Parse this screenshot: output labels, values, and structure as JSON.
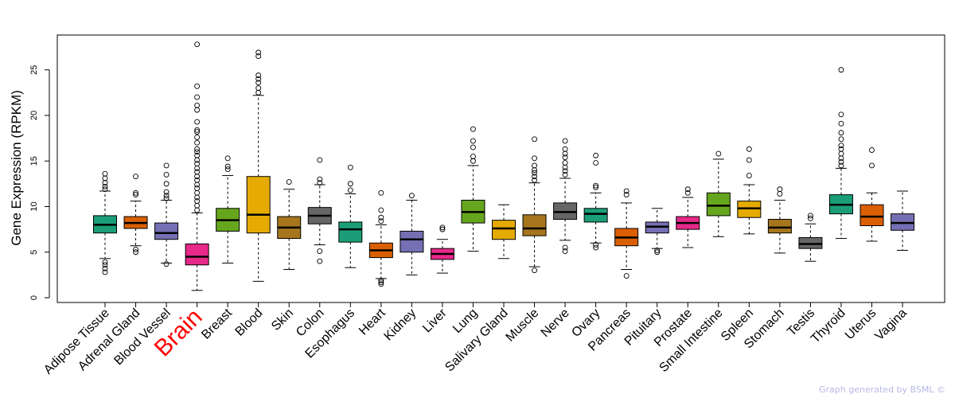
{
  "chart_data": {
    "type": "boxplot",
    "ylabel": "Gene Expression (RPKM)",
    "xlabel": "",
    "ylim": [
      0,
      28.5
    ],
    "yticks": [
      0,
      5,
      10,
      15,
      20,
      25
    ],
    "highlight": "Brain",
    "highlight_color": "#ff0000",
    "categories": [
      {
        "name": "Adipose Tissue",
        "color": "#1b9e77",
        "q1": 7.1,
        "median": 8.0,
        "q3": 9.0,
        "low": 4.3,
        "high": 11.7,
        "outliers": [
          2.8,
          3.2,
          3.6,
          3.9,
          11.9,
          12.2,
          12.6,
          13.1,
          13.6
        ]
      },
      {
        "name": "Adrenal Gland",
        "color": "#d95f02",
        "q1": 7.6,
        "median": 8.2,
        "q3": 8.9,
        "low": 5.7,
        "high": 10.6,
        "outliers": [
          5.0,
          5.3,
          11.3,
          11.5,
          13.3
        ]
      },
      {
        "name": "Blood Vessel",
        "color": "#7570b3",
        "q1": 6.4,
        "median": 7.1,
        "q3": 8.2,
        "low": 3.8,
        "high": 10.7,
        "outliers": [
          3.7,
          10.9,
          11.2,
          11.6,
          12.5,
          13.5,
          14.5
        ]
      },
      {
        "name": "Brain",
        "color": "#e7298a",
        "q1": 3.6,
        "median": 4.5,
        "q3": 5.9,
        "low": 0.8,
        "high": 9.3,
        "outliers": [
          9.6,
          10.1,
          10.6,
          11.0,
          11.5,
          12.0,
          12.4,
          12.9,
          13.3,
          13.8,
          14.2,
          14.7,
          15.1,
          15.6,
          16.0,
          16.3,
          17.0,
          17.6,
          18.2,
          18.4,
          19.3,
          20.6,
          21.1,
          22.0,
          23.2,
          27.8
        ]
      },
      {
        "name": "Breast",
        "color": "#66a61e",
        "q1": 7.3,
        "median": 8.5,
        "q3": 9.8,
        "low": 3.8,
        "high": 13.4,
        "outliers": [
          14.1,
          14.4,
          15.3
        ]
      },
      {
        "name": "Blood",
        "color": "#e6ab02",
        "q1": 7.1,
        "median": 9.1,
        "q3": 13.3,
        "low": 1.8,
        "high": 22.2,
        "outliers": [
          22.5,
          23.0,
          23.6,
          24.0,
          24.4,
          26.5,
          26.9
        ]
      },
      {
        "name": "Skin",
        "color": "#a6761d",
        "q1": 6.5,
        "median": 7.7,
        "q3": 8.9,
        "low": 3.1,
        "high": 11.9,
        "outliers": [
          12.7
        ]
      },
      {
        "name": "Colon",
        "color": "#666666",
        "q1": 8.1,
        "median": 9.0,
        "q3": 9.9,
        "low": 5.8,
        "high": 12.4,
        "outliers": [
          4.0,
          5.1,
          12.6,
          13.0,
          15.1
        ]
      },
      {
        "name": "Esophagus",
        "color": "#1b9e77",
        "q1": 6.1,
        "median": 7.5,
        "q3": 8.3,
        "low": 3.3,
        "high": 11.4,
        "outliers": [
          11.8,
          12.5,
          14.3
        ]
      },
      {
        "name": "Heart",
        "color": "#d95f02",
        "q1": 4.4,
        "median": 5.2,
        "q3": 6.0,
        "low": 2.1,
        "high": 8.0,
        "outliers": [
          1.5,
          1.7,
          1.9,
          8.4,
          8.8,
          9.6,
          11.5
        ]
      },
      {
        "name": "Kidney",
        "color": "#7570b3",
        "q1": 5.0,
        "median": 6.4,
        "q3": 7.3,
        "low": 2.5,
        "high": 10.7,
        "outliers": [
          11.2
        ]
      },
      {
        "name": "Liver",
        "color": "#e7298a",
        "q1": 4.2,
        "median": 4.8,
        "q3": 5.4,
        "low": 2.7,
        "high": 6.4,
        "outliers": [
          7.5,
          7.7
        ]
      },
      {
        "name": "Lung",
        "color": "#66a61e",
        "q1": 8.2,
        "median": 9.4,
        "q3": 10.7,
        "low": 5.1,
        "high": 14.5,
        "outliers": [
          15.0,
          15.5,
          16.5,
          17.2,
          18.5
        ]
      },
      {
        "name": "Salivary Gland",
        "color": "#e6ab02",
        "q1": 6.4,
        "median": 7.6,
        "q3": 8.5,
        "low": 4.3,
        "high": 10.2,
        "outliers": []
      },
      {
        "name": "Muscle",
        "color": "#a6761d",
        "q1": 6.8,
        "median": 7.6,
        "q3": 9.1,
        "low": 3.4,
        "high": 12.6,
        "outliers": [
          3.0,
          12.9,
          13.3,
          13.7,
          14.0,
          14.5,
          15.3,
          17.4
        ]
      },
      {
        "name": "Nerve",
        "color": "#666666",
        "q1": 8.6,
        "median": 9.4,
        "q3": 10.4,
        "low": 6.3,
        "high": 13.1,
        "outliers": [
          5.1,
          5.5,
          13.5,
          13.9,
          14.3,
          14.8,
          15.4,
          15.8,
          16.3,
          17.2
        ]
      },
      {
        "name": "Ovary",
        "color": "#1b9e77",
        "q1": 8.3,
        "median": 9.2,
        "q3": 9.8,
        "low": 6.0,
        "high": 11.5,
        "outliers": [
          5.5,
          5.8,
          12.1,
          12.3,
          14.8,
          15.6
        ]
      },
      {
        "name": "Pancreas",
        "color": "#d95f02",
        "q1": 5.7,
        "median": 6.6,
        "q3": 7.6,
        "low": 3.1,
        "high": 10.4,
        "outliers": [
          2.4,
          11.3,
          11.7
        ]
      },
      {
        "name": "Pituitary",
        "color": "#7570b3",
        "q1": 7.1,
        "median": 7.8,
        "q3": 8.3,
        "low": 5.4,
        "high": 9.8,
        "outliers": [
          5.0,
          5.2
        ]
      },
      {
        "name": "Prostate",
        "color": "#e7298a",
        "q1": 7.5,
        "median": 8.2,
        "q3": 8.9,
        "low": 5.5,
        "high": 11.0,
        "outliers": [
          11.5,
          11.9
        ]
      },
      {
        "name": "Small Intestine",
        "color": "#66a61e",
        "q1": 9.0,
        "median": 10.1,
        "q3": 11.5,
        "low": 6.7,
        "high": 15.2,
        "outliers": [
          15.8
        ]
      },
      {
        "name": "Spleen",
        "color": "#e6ab02",
        "q1": 8.8,
        "median": 9.8,
        "q3": 10.6,
        "low": 7.0,
        "high": 12.4,
        "outliers": [
          13.4,
          15.1,
          16.3
        ]
      },
      {
        "name": "Stomach",
        "color": "#a6761d",
        "q1": 7.1,
        "median": 7.7,
        "q3": 8.6,
        "low": 4.9,
        "high": 10.7,
        "outliers": [
          11.4,
          11.9
        ]
      },
      {
        "name": "Testis",
        "color": "#666666",
        "q1": 5.4,
        "median": 5.9,
        "q3": 6.6,
        "low": 4.0,
        "high": 8.1,
        "outliers": [
          8.7,
          9.0
        ]
      },
      {
        "name": "Thyroid",
        "color": "#1b9e77",
        "q1": 9.2,
        "median": 10.2,
        "q3": 11.3,
        "low": 6.5,
        "high": 14.2,
        "outliers": [
          14.5,
          14.9,
          15.3,
          15.8,
          16.3,
          16.7,
          17.4,
          18.1,
          19.1,
          20.1,
          25.0
        ]
      },
      {
        "name": "Uterus",
        "color": "#d95f02",
        "q1": 7.9,
        "median": 8.9,
        "q3": 10.2,
        "low": 6.2,
        "high": 11.5,
        "outliers": [
          14.5,
          16.2
        ]
      },
      {
        "name": "Vagina",
        "color": "#7570b3",
        "q1": 7.4,
        "median": 8.2,
        "q3": 9.2,
        "low": 5.2,
        "high": 11.7,
        "outliers": []
      }
    ]
  },
  "footer": {
    "credit": "Graph generated by BSML ©"
  }
}
